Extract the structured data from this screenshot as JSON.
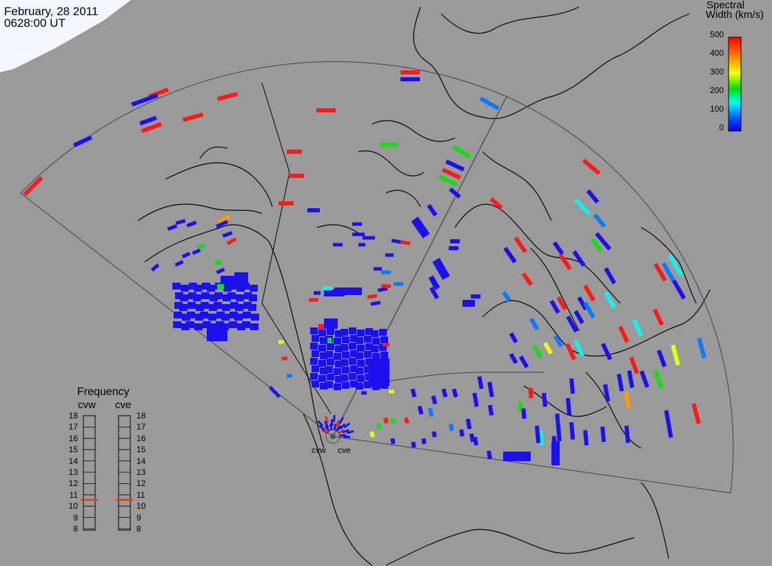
{
  "header": {
    "date": "February, 28 2011",
    "time": "0628:00 UT"
  },
  "colorbar": {
    "title_line1": "Spectral",
    "title_line2": "Width (km/s)",
    "ticks": [
      "500",
      "400",
      "300",
      "200",
      "100",
      "0"
    ],
    "colors": [
      "#ff0000",
      "#ff8c00",
      "#ffff00",
      "#00e000",
      "#00ffff",
      "#0060ff",
      "#0000ff"
    ]
  },
  "frequency_panel": {
    "title": "Frequency",
    "radar_left": "cvw",
    "radar_right": "cve",
    "scale": [
      "18",
      "17",
      "16",
      "15",
      "14",
      "13",
      "12",
      "11",
      "10",
      "9",
      "8"
    ],
    "marker_color": "#e04000"
  },
  "radars": [
    {
      "label": "cvw"
    },
    {
      "label": "cve"
    }
  ],
  "colors": {
    "background": "#9a9a9a",
    "coastline": "#000000",
    "fov_border": "#404040"
  }
}
